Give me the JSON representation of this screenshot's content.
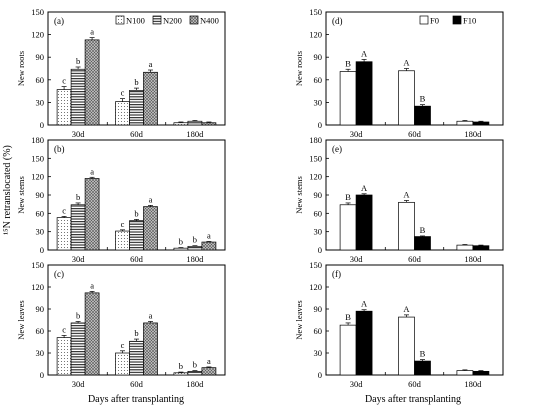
{
  "figure": {
    "y_axis_label_left": "¹⁵N retranslocated (%)",
    "x_axis_label": "Days after transplanting",
    "categories": [
      "30d",
      "60d",
      "180d"
    ]
  },
  "colors": {
    "black": "#000000",
    "white": "#ffffff",
    "grey": "#a6a6a6"
  },
  "chart_data": [
    {
      "type": "bar",
      "panel": "(a)",
      "ylabel": "New roots",
      "categories": [
        "30d",
        "60d",
        "180d"
      ],
      "ylim": [
        0,
        150
      ],
      "yticks": [
        0,
        30,
        60,
        90,
        120,
        150
      ],
      "series": [
        {
          "name": "N100",
          "values": [
            47,
            31,
            3
          ],
          "errors": [
            4,
            4,
            1
          ],
          "letters": [
            "c",
            "c",
            ""
          ],
          "pattern": "dots"
        },
        {
          "name": "N200",
          "values": [
            74,
            46,
            5
          ],
          "errors": [
            3,
            3,
            1
          ],
          "letters": [
            "b",
            "b",
            ""
          ],
          "pattern": "hlines"
        },
        {
          "name": "N400",
          "values": [
            113,
            70,
            3
          ],
          "errors": [
            3,
            3,
            1
          ],
          "letters": [
            "a",
            "a",
            ""
          ],
          "pattern": "cross"
        }
      ]
    },
    {
      "type": "bar",
      "panel": "(b)",
      "ylabel": "New stems",
      "categories": [
        "30d",
        "60d",
        "180d"
      ],
      "ylim": [
        0,
        180
      ],
      "yticks": [
        0,
        30,
        60,
        90,
        120,
        150,
        180
      ],
      "series": [
        {
          "name": "N100",
          "values": [
            53,
            31,
            3
          ],
          "errors": [
            2,
            2,
            1
          ],
          "letters": [
            "c",
            "c",
            "b"
          ],
          "pattern": "dots"
        },
        {
          "name": "N200",
          "values": [
            74,
            48,
            6
          ],
          "errors": [
            3,
            2,
            1
          ],
          "letters": [
            "b",
            "b",
            "b"
          ],
          "pattern": "hlines"
        },
        {
          "name": "N400",
          "values": [
            117,
            71,
            13
          ],
          "errors": [
            2,
            2,
            1
          ],
          "letters": [
            "a",
            "a",
            "a"
          ],
          "pattern": "cross"
        }
      ]
    },
    {
      "type": "bar",
      "panel": "(c)",
      "ylabel": "New leaves",
      "categories": [
        "30d",
        "60d",
        "180d"
      ],
      "ylim": [
        0,
        150
      ],
      "yticks": [
        0,
        30,
        60,
        90,
        120,
        150
      ],
      "series": [
        {
          "name": "N100",
          "values": [
            51,
            30,
            3
          ],
          "errors": [
            3,
            3,
            1
          ],
          "letters": [
            "c",
            "c",
            "b"
          ],
          "pattern": "dots"
        },
        {
          "name": "N200",
          "values": [
            71,
            46,
            5
          ],
          "errors": [
            2,
            3,
            1
          ],
          "letters": [
            "b",
            "b",
            "b"
          ],
          "pattern": "hlines"
        },
        {
          "name": "N400",
          "values": [
            112,
            71,
            10
          ],
          "errors": [
            2,
            2,
            1
          ],
          "letters": [
            "a",
            "a",
            "a"
          ],
          "pattern": "cross"
        }
      ]
    },
    {
      "type": "bar",
      "panel": "(d)",
      "ylabel": "New roots",
      "categories": [
        "30d",
        "60d",
        "180d"
      ],
      "ylim": [
        0,
        150
      ],
      "yticks": [
        0,
        30,
        60,
        90,
        120,
        150
      ],
      "series": [
        {
          "name": "F0",
          "values": [
            71,
            72,
            5
          ],
          "errors": [
            3,
            3,
            1
          ],
          "letters": [
            "B",
            "A",
            ""
          ],
          "pattern": "white"
        },
        {
          "name": "F10",
          "values": [
            84,
            25,
            4
          ],
          "errors": [
            3,
            2,
            1
          ],
          "letters": [
            "A",
            "B",
            ""
          ],
          "pattern": "black"
        }
      ]
    },
    {
      "type": "bar",
      "panel": "(e)",
      "ylabel": "New stems",
      "categories": [
        "30d",
        "60d",
        "180d"
      ],
      "ylim": [
        0,
        180
      ],
      "yticks": [
        0,
        30,
        60,
        90,
        120,
        150,
        180
      ],
      "series": [
        {
          "name": "F0",
          "values": [
            74,
            78,
            8
          ],
          "errors": [
            3,
            3,
            1
          ],
          "letters": [
            "B",
            "A",
            ""
          ],
          "pattern": "white"
        },
        {
          "name": "F10",
          "values": [
            90,
            22,
            7
          ],
          "errors": [
            2,
            1,
            1
          ],
          "letters": [
            "A",
            "B",
            ""
          ],
          "pattern": "black"
        }
      ]
    },
    {
      "type": "bar",
      "panel": "(f)",
      "ylabel": "New leaves",
      "categories": [
        "30d",
        "60d",
        "180d"
      ],
      "ylim": [
        0,
        150
      ],
      "yticks": [
        0,
        30,
        60,
        90,
        120,
        150
      ],
      "series": [
        {
          "name": "F0",
          "values": [
            68,
            79,
            6
          ],
          "errors": [
            3,
            3,
            1
          ],
          "letters": [
            "B",
            "A",
            ""
          ],
          "pattern": "white"
        },
        {
          "name": "F10",
          "values": [
            87,
            19,
            5
          ],
          "errors": [
            2,
            2,
            1
          ],
          "letters": [
            "A",
            "B",
            ""
          ],
          "pattern": "black"
        }
      ]
    }
  ]
}
